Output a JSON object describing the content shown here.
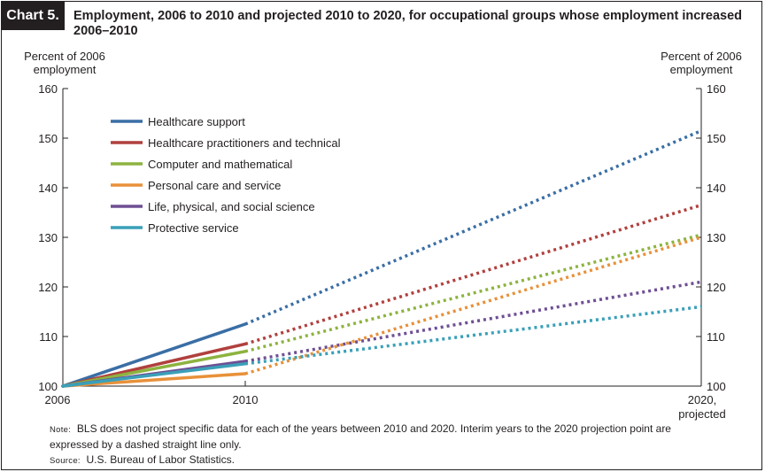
{
  "header": {
    "chart_label": "Chart 5.",
    "title": "Employment, 2006 to 2010 and projected 2010 to 2020, for occupational groups whose employment increased 2006–2010"
  },
  "footer": {
    "note_prefix": "Note:",
    "note_text": "BLS does not project specific data for each of the years between 2010 and 2020. Interim years to the 2020 projection point are expressed by a dashed straight line only.",
    "source_prefix": "Source:",
    "source_text": "U.S. Bureau of Labor Statistics."
  },
  "chart_data": {
    "type": "line",
    "title": "Employment, 2006 to 2010 and projected 2010 to 2020, for occupational groups whose employment increased 2006–2010",
    "ylabel_left": "Percent of 2006 employment",
    "ylabel_right": "Percent of 2006 employment",
    "x": [
      "2006",
      "2010",
      "2020, projected"
    ],
    "x_positions": [
      2006,
      2010,
      2020
    ],
    "x_tick_labels": [
      "2006",
      "2010",
      "2020,",
      "projected"
    ],
    "ylim": [
      100,
      160
    ],
    "y_ticks": [
      100,
      110,
      120,
      130,
      140,
      150,
      160
    ],
    "grid": false,
    "legend_position": "top-left",
    "projection_style": "solid 2006–2010, dashed 2010–2020",
    "series": [
      {
        "name": "Healthcare support",
        "color": "#3a6ea5",
        "values": [
          100,
          112.5,
          151.5
        ]
      },
      {
        "name": "Healthcare practitioners and technical",
        "color": "#b0403e",
        "values": [
          100,
          108.5,
          136.5
        ]
      },
      {
        "name": "Computer and mathematical",
        "color": "#8db33f",
        "values": [
          100,
          107,
          130.5
        ]
      },
      {
        "name": "Personal care and service",
        "color": "#e8913a",
        "values": [
          100,
          102.5,
          130
        ]
      },
      {
        "name": "Life, physical, and social science",
        "color": "#6e4f94",
        "values": [
          100,
          105,
          121
        ]
      },
      {
        "name": "Protective service",
        "color": "#3aa0b8",
        "values": [
          100,
          104.5,
          116
        ]
      }
    ]
  }
}
